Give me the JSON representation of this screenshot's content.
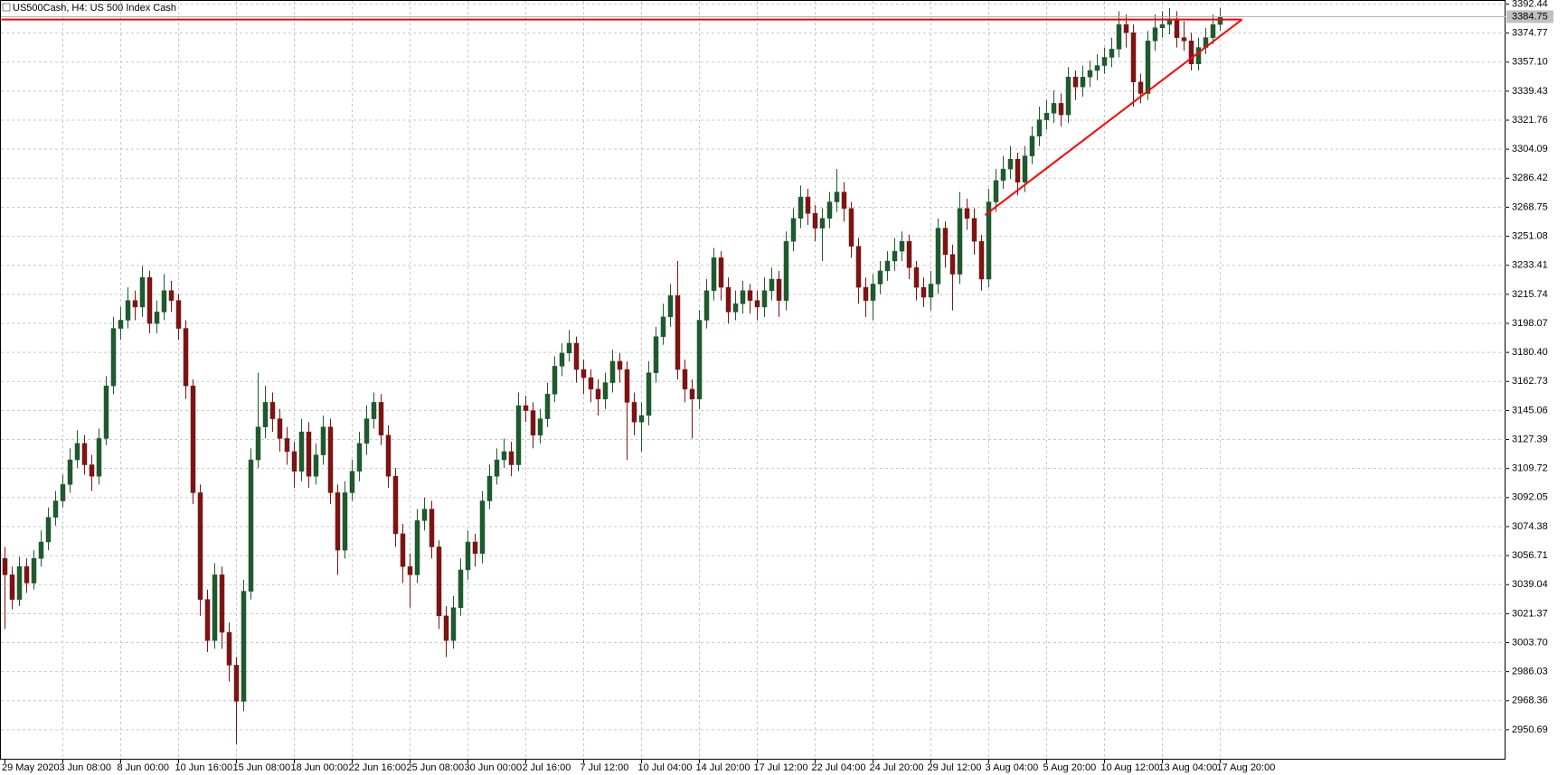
{
  "chart_data": {
    "type": "candlestick",
    "title": "US500Cash, H4:  US 500 Index Cash",
    "up_color": "#1f5a2e",
    "down_color": "#7d1414",
    "grid": true,
    "ylim": [
      2932.5,
      3394.9
    ],
    "yticks": [
      2950.69,
      2968.36,
      2986.03,
      {
        "value": 3003.7,
        "label": "3003.70"
      },
      3021.37,
      3039.04,
      3056.71,
      3074.38,
      3092.05,
      3109.72,
      3127.39,
      3145.06,
      3162.73,
      {
        "value": 3180.4,
        "label": "3180.40"
      },
      3198.07,
      3215.74,
      3233.41,
      3251.08,
      3268.75,
      3286.42,
      3304.09,
      3321.76,
      3339.43,
      {
        "value": 3357.1,
        "label": "3357.10"
      },
      3374.77,
      3392.44
    ],
    "categories": [
      "29 May 2020",
      null,
      null,
      null,
      null,
      null,
      null,
      null,
      "3 Jun 08:00",
      null,
      null,
      null,
      null,
      null,
      null,
      null,
      "8 Jun 00:00",
      null,
      null,
      null,
      null,
      null,
      null,
      null,
      "10 Jun 16:00",
      null,
      null,
      null,
      null,
      null,
      null,
      null,
      "15 Jun 08:00",
      null,
      null,
      null,
      null,
      null,
      null,
      null,
      "18 Jun 00:00",
      null,
      null,
      null,
      null,
      null,
      null,
      null,
      "22 Jun 16:00",
      null,
      null,
      null,
      null,
      null,
      null,
      null,
      "25 Jun 08:00",
      null,
      null,
      null,
      null,
      null,
      null,
      null,
      "30 Jun 00:00",
      null,
      null,
      null,
      null,
      null,
      null,
      null,
      "2 Jul 16:00",
      null,
      null,
      null,
      null,
      null,
      null,
      null,
      "7 Jul 12:00",
      null,
      null,
      null,
      null,
      null,
      null,
      null,
      "10 Jul 04:00",
      null,
      null,
      null,
      null,
      null,
      null,
      null,
      "14 Jul 20:00",
      null,
      null,
      null,
      null,
      null,
      null,
      null,
      "17 Jul 12:00",
      null,
      null,
      null,
      null,
      null,
      null,
      null,
      "22 Jul 04:00",
      null,
      null,
      null,
      null,
      null,
      null,
      null,
      "24 Jul 20:00",
      null,
      null,
      null,
      null,
      null,
      null,
      null,
      "29 Jul 12:00",
      null,
      null,
      null,
      null,
      null,
      null,
      null,
      "3 Aug 04:00",
      null,
      null,
      null,
      null,
      null,
      null,
      null,
      "5 Aug 20:00",
      null,
      null,
      null,
      null,
      null,
      null,
      null,
      "10 Aug 12:00",
      null,
      null,
      null,
      null,
      null,
      null,
      null,
      "13 Aug 04:00",
      null,
      null,
      null,
      null,
      null,
      null,
      null,
      "17 Aug 20:00"
    ],
    "ohlc": [
      [
        3055,
        3062,
        3012,
        3045
      ],
      [
        3045,
        3050,
        3024,
        3030
      ],
      [
        3030,
        3056,
        3026,
        3050
      ],
      [
        3050,
        3055,
        3034,
        3040
      ],
      [
        3040,
        3060,
        3036,
        3055
      ],
      [
        3055,
        3072,
        3050,
        3065
      ],
      [
        3065,
        3086,
        3060,
        3080
      ],
      [
        3080,
        3096,
        3075,
        3090
      ],
      [
        3090,
        3106,
        3086,
        3100
      ],
      [
        3100,
        3122,
        3095,
        3115
      ],
      [
        3115,
        3133,
        3110,
        3125
      ],
      [
        3125,
        3130,
        3106,
        3112
      ],
      [
        3112,
        3118,
        3096,
        3105
      ],
      [
        3105,
        3134,
        3100,
        3128
      ],
      [
        3128,
        3166,
        3124,
        3160
      ],
      [
        3160,
        3202,
        3155,
        3195
      ],
      [
        3195,
        3208,
        3188,
        3200
      ],
      [
        3200,
        3220,
        3195,
        3212
      ],
      [
        3212,
        3218,
        3200,
        3208
      ],
      [
        3208,
        3233,
        3202,
        3226
      ],
      [
        3226,
        3230,
        3192,
        3198
      ],
      [
        3198,
        3212,
        3192,
        3205
      ],
      [
        3205,
        3228,
        3200,
        3218
      ],
      [
        3218,
        3224,
        3205,
        3212
      ],
      [
        3212,
        3216,
        3188,
        3195
      ],
      [
        3195,
        3200,
        3152,
        3160
      ],
      [
        3160,
        3164,
        3088,
        3095
      ],
      [
        3095,
        3100,
        3020,
        3030
      ],
      [
        3030,
        3036,
        2998,
        3005
      ],
      [
        3005,
        3052,
        3000,
        3045
      ],
      [
        3045,
        3050,
        3000,
        3010
      ],
      [
        3010,
        3016,
        2980,
        2990
      ],
      [
        2990,
        2995,
        2942,
        2968
      ],
      [
        2968,
        3042,
        2962,
        3035
      ],
      [
        3035,
        3122,
        3030,
        3115
      ],
      [
        3115,
        3168,
        3110,
        3135
      ],
      [
        3135,
        3160,
        3128,
        3150
      ],
      [
        3150,
        3156,
        3132,
        3140
      ],
      [
        3140,
        3146,
        3120,
        3128
      ],
      [
        3128,
        3135,
        3112,
        3120
      ],
      [
        3120,
        3126,
        3098,
        3108
      ],
      [
        3108,
        3140,
        3102,
        3132
      ],
      [
        3132,
        3138,
        3098,
        3105
      ],
      [
        3105,
        3125,
        3100,
        3118
      ],
      [
        3118,
        3142,
        3112,
        3135
      ],
      [
        3135,
        3140,
        3088,
        3095
      ],
      [
        3095,
        3100,
        3045,
        3060
      ],
      [
        3060,
        3102,
        3055,
        3095
      ],
      [
        3095,
        3115,
        3090,
        3108
      ],
      [
        3108,
        3132,
        3102,
        3125
      ],
      [
        3125,
        3148,
        3118,
        3140
      ],
      [
        3140,
        3156,
        3134,
        3150
      ],
      [
        3150,
        3155,
        3124,
        3130
      ],
      [
        3130,
        3136,
        3098,
        3105
      ],
      [
        3105,
        3110,
        3062,
        3070
      ],
      [
        3070,
        3076,
        3040,
        3050
      ],
      [
        3050,
        3058,
        3025,
        3045
      ],
      [
        3045,
        3085,
        3040,
        3078
      ],
      [
        3078,
        3092,
        3072,
        3085
      ],
      [
        3085,
        3090,
        3055,
        3062
      ],
      [
        3062,
        3066,
        3012,
        3020
      ],
      [
        3020,
        3026,
        2995,
        3005
      ],
      [
        3005,
        3032,
        3000,
        3025
      ],
      [
        3025,
        3055,
        3020,
        3048
      ],
      [
        3048,
        3072,
        3042,
        3065
      ],
      [
        3065,
        3070,
        3050,
        3058
      ],
      [
        3058,
        3096,
        3052,
        3090
      ],
      [
        3090,
        3112,
        3085,
        3105
      ],
      [
        3105,
        3122,
        3100,
        3115
      ],
      [
        3115,
        3128,
        3110,
        3120
      ],
      [
        3120,
        3126,
        3105,
        3112
      ],
      [
        3112,
        3156,
        3108,
        3148
      ],
      [
        3148,
        3154,
        3138,
        3145
      ],
      [
        3145,
        3150,
        3122,
        3130
      ],
      [
        3130,
        3146,
        3125,
        3140
      ],
      [
        3140,
        3162,
        3135,
        3155
      ],
      [
        3155,
        3178,
        3150,
        3172
      ],
      [
        3172,
        3186,
        3166,
        3180
      ],
      [
        3180,
        3194,
        3175,
        3186
      ],
      [
        3186,
        3190,
        3162,
        3170
      ],
      [
        3170,
        3176,
        3155,
        3165
      ],
      [
        3165,
        3170,
        3150,
        3158
      ],
      [
        3158,
        3164,
        3142,
        3152
      ],
      [
        3152,
        3168,
        3146,
        3162
      ],
      [
        3162,
        3182,
        3156,
        3175
      ],
      [
        3175,
        3180,
        3162,
        3170
      ],
      [
        3170,
        3175,
        3115,
        3150
      ],
      [
        3150,
        3156,
        3130,
        3138
      ],
      [
        3138,
        3150,
        3120,
        3142
      ],
      [
        3142,
        3175,
        3136,
        3168
      ],
      [
        3168,
        3196,
        3162,
        3190
      ],
      [
        3190,
        3210,
        3185,
        3202
      ],
      [
        3202,
        3222,
        3196,
        3215
      ],
      [
        3215,
        3236,
        3164,
        3170
      ],
      [
        3170,
        3176,
        3150,
        3158
      ],
      [
        3158,
        3164,
        3128,
        3152
      ],
      [
        3152,
        3206,
        3146,
        3200
      ],
      [
        3200,
        3225,
        3195,
        3218
      ],
      [
        3218,
        3244,
        3212,
        3238
      ],
      [
        3238,
        3242,
        3212,
        3220
      ],
      [
        3220,
        3226,
        3198,
        3205
      ],
      [
        3205,
        3218,
        3200,
        3210
      ],
      [
        3210,
        3224,
        3204,
        3218
      ],
      [
        3218,
        3222,
        3204,
        3212
      ],
      [
        3212,
        3218,
        3200,
        3208
      ],
      [
        3208,
        3226,
        3202,
        3218
      ],
      [
        3218,
        3232,
        3212,
        3225
      ],
      [
        3225,
        3230,
        3202,
        3212
      ],
      [
        3212,
        3254,
        3206,
        3248
      ],
      [
        3248,
        3268,
        3242,
        3262
      ],
      [
        3262,
        3282,
        3256,
        3275
      ],
      [
        3275,
        3280,
        3258,
        3265
      ],
      [
        3265,
        3270,
        3248,
        3256
      ],
      [
        3256,
        3268,
        3236,
        3262
      ],
      [
        3262,
        3278,
        3256,
        3272
      ],
      [
        3272,
        3292,
        3266,
        3278
      ],
      [
        3278,
        3284,
        3260,
        3268
      ],
      [
        3268,
        3272,
        3238,
        3245
      ],
      [
        3245,
        3250,
        3210,
        3220
      ],
      [
        3220,
        3226,
        3202,
        3212
      ],
      [
        3212,
        3228,
        3200,
        3222
      ],
      [
        3222,
        3236,
        3216,
        3230
      ],
      [
        3230,
        3242,
        3224,
        3236
      ],
      [
        3236,
        3250,
        3230,
        3242
      ],
      [
        3242,
        3254,
        3236,
        3248
      ],
      [
        3248,
        3252,
        3225,
        3232
      ],
      [
        3232,
        3236,
        3212,
        3220
      ],
      [
        3220,
        3226,
        3208,
        3214
      ],
      [
        3214,
        3230,
        3206,
        3222
      ],
      [
        3222,
        3262,
        3216,
        3256
      ],
      [
        3256,
        3260,
        3232,
        3240
      ],
      [
        3240,
        3246,
        3206,
        3228
      ],
      [
        3228,
        3278,
        3222,
        3268
      ],
      [
        3268,
        3274,
        3255,
        3262
      ],
      [
        3262,
        3268,
        3240,
        3248
      ],
      [
        3248,
        3252,
        3218,
        3225
      ],
      [
        3225,
        3280,
        3220,
        3272
      ],
      [
        3272,
        3292,
        3266,
        3285
      ],
      [
        3285,
        3300,
        3280,
        3292
      ],
      [
        3292,
        3306,
        3286,
        3298
      ],
      [
        3298,
        3302,
        3276,
        3284
      ],
      [
        3284,
        3306,
        3278,
        3300
      ],
      [
        3300,
        3318,
        3295,
        3312
      ],
      [
        3312,
        3330,
        3306,
        3322
      ],
      [
        3322,
        3334,
        3316,
        3326
      ],
      [
        3326,
        3340,
        3320,
        3332
      ],
      [
        3332,
        3338,
        3318,
        3325
      ],
      [
        3325,
        3354,
        3320,
        3348
      ],
      [
        3348,
        3352,
        3334,
        3342
      ],
      [
        3342,
        3355,
        3336,
        3348
      ],
      [
        3348,
        3358,
        3342,
        3352
      ],
      [
        3352,
        3362,
        3346,
        3355
      ],
      [
        3355,
        3366,
        3350,
        3360
      ],
      [
        3360,
        3372,
        3354,
        3365
      ],
      [
        3365,
        3388,
        3360,
        3380
      ],
      [
        3380,
        3386,
        3366,
        3375
      ],
      [
        3375,
        3380,
        3330,
        3345
      ],
      [
        3345,
        3350,
        3332,
        3338
      ],
      [
        3338,
        3376,
        3334,
        3370
      ],
      [
        3370,
        3386,
        3364,
        3378
      ],
      [
        3378,
        3388,
        3372,
        3380
      ],
      [
        3380,
        3390,
        3374,
        3383
      ],
      [
        3383,
        3388,
        3366,
        3372
      ],
      [
        3372,
        3382,
        3364,
        3370
      ],
      [
        3370,
        3375,
        3352,
        3356
      ],
      [
        3356,
        3372,
        3352,
        3366
      ],
      [
        3366,
        3378,
        3362,
        3372
      ],
      [
        3372,
        3386,
        3368,
        3380
      ],
      [
        3380,
        3390,
        3376,
        3384.75
      ]
    ],
    "trendlines": [
      {
        "color": "#ff0000",
        "x": [
          0,
          171
        ],
        "y": [
          3383,
          3383
        ]
      },
      {
        "color": "#ff0000",
        "x": [
          136,
          171
        ],
        "y": [
          3264,
          3383
        ]
      }
    ]
  }
}
